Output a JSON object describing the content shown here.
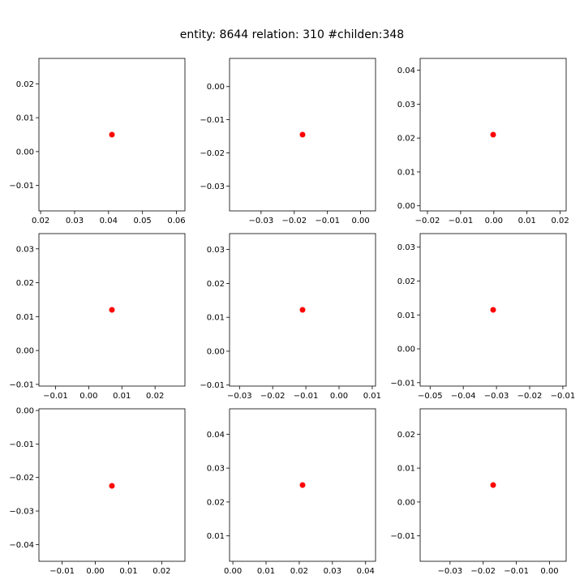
{
  "figure": {
    "title": "entity: 8644  relation: 310  #childen:348",
    "point_color": "#ff0000",
    "axes_color": "#000000",
    "background": "#ffffff"
  },
  "chart_data": [
    {
      "type": "scatter",
      "x": [
        0.041
      ],
      "y": [
        0.005
      ],
      "xlim": [
        0.0195,
        0.0625
      ],
      "ylim": [
        -0.0175,
        0.0275
      ],
      "xticks": [
        0.02,
        0.03,
        0.04,
        0.05,
        0.06
      ],
      "xtick_labels": [
        "0.02",
        "0.03",
        "0.04",
        "0.05",
        "0.06"
      ],
      "yticks": [
        -0.01,
        0.0,
        0.01,
        0.02
      ],
      "ytick_labels": [
        "−0.01",
        "0.00",
        "0.01",
        "0.02"
      ]
    },
    {
      "type": "scatter",
      "x": [
        -0.0175
      ],
      "y": [
        -0.0145
      ],
      "xlim": [
        -0.0395,
        0.0045
      ],
      "ylim": [
        -0.0375,
        0.0085
      ],
      "xticks": [
        -0.03,
        -0.02,
        -0.01,
        0.0
      ],
      "xtick_labels": [
        "−0.03",
        "−0.02",
        "−0.01",
        "0.00"
      ],
      "yticks": [
        -0.03,
        -0.02,
        -0.01,
        0.0
      ],
      "ytick_labels": [
        "−0.03",
        "−0.02",
        "−0.01",
        "0.00"
      ]
    },
    {
      "type": "scatter",
      "x": [
        -0.0002
      ],
      "y": [
        0.021
      ],
      "xlim": [
        -0.0222,
        0.0218
      ],
      "ylim": [
        -0.0015,
        0.0435
      ],
      "xticks": [
        -0.02,
        -0.01,
        0.0,
        0.01,
        0.02
      ],
      "xtick_labels": [
        "−0.02",
        "−0.01",
        "0.00",
        "0.01",
        "0.02"
      ],
      "yticks": [
        0.0,
        0.01,
        0.02,
        0.03,
        0.04
      ],
      "ytick_labels": [
        "0.00",
        "0.01",
        "0.02",
        "0.03",
        "0.04"
      ]
    },
    {
      "type": "scatter",
      "x": [
        0.007
      ],
      "y": [
        0.012
      ],
      "xlim": [
        -0.015,
        0.029
      ],
      "ylim": [
        -0.0105,
        0.0345
      ],
      "xticks": [
        -0.01,
        0.0,
        0.01,
        0.02
      ],
      "xtick_labels": [
        "−0.01",
        "0.00",
        "0.01",
        "0.02"
      ],
      "yticks": [
        -0.01,
        0.0,
        0.01,
        0.02,
        0.03
      ],
      "ytick_labels": [
        "−0.01",
        "0.00",
        "0.01",
        "0.02",
        "0.03"
      ]
    },
    {
      "type": "scatter",
      "x": [
        -0.011
      ],
      "y": [
        0.0122
      ],
      "xlim": [
        -0.033,
        0.011
      ],
      "ylim": [
        -0.0103,
        0.0347
      ],
      "xticks": [
        -0.03,
        -0.02,
        -0.01,
        0.0,
        0.01
      ],
      "xtick_labels": [
        "−0.03",
        "−0.02",
        "−0.01",
        "0.00",
        "0.01"
      ],
      "yticks": [
        -0.01,
        0.0,
        0.01,
        0.02,
        0.03
      ],
      "ytick_labels": [
        "−0.01",
        "0.00",
        "0.01",
        "0.02",
        "0.03"
      ]
    },
    {
      "type": "scatter",
      "x": [
        -0.031
      ],
      "y": [
        0.0115
      ],
      "xlim": [
        -0.053,
        -0.009
      ],
      "ylim": [
        -0.011,
        0.034
      ],
      "xticks": [
        -0.05,
        -0.04,
        -0.03,
        -0.02,
        -0.01
      ],
      "xtick_labels": [
        "−0.05",
        "−0.04",
        "−0.03",
        "−0.02",
        "−0.01"
      ],
      "yticks": [
        -0.01,
        0.0,
        0.01,
        0.02,
        0.03
      ],
      "ytick_labels": [
        "−0.01",
        "0.00",
        "0.01",
        "0.02",
        "0.03"
      ]
    },
    {
      "type": "scatter",
      "x": [
        0.005
      ],
      "y": [
        -0.0225
      ],
      "xlim": [
        -0.017,
        0.027
      ],
      "ylim": [
        -0.045,
        0.0005
      ],
      "xticks": [
        -0.01,
        0.0,
        0.01,
        0.02
      ],
      "xtick_labels": [
        "−0.01",
        "0.00",
        "0.01",
        "0.02"
      ],
      "yticks": [
        -0.04,
        -0.03,
        -0.02,
        -0.01,
        0.0
      ],
      "ytick_labels": [
        "−0.04",
        "−0.03",
        "−0.02",
        "−0.01",
        "0.00"
      ]
    },
    {
      "type": "scatter",
      "x": [
        0.021
      ],
      "y": [
        0.025
      ],
      "xlim": [
        -0.001,
        0.043
      ],
      "ylim": [
        0.0025,
        0.0475
      ],
      "xticks": [
        0.0,
        0.01,
        0.02,
        0.03,
        0.04
      ],
      "xtick_labels": [
        "0.00",
        "0.01",
        "0.02",
        "0.03",
        "0.04"
      ],
      "yticks": [
        0.01,
        0.02,
        0.03,
        0.04
      ],
      "ytick_labels": [
        "0.01",
        "0.02",
        "0.03",
        "0.04"
      ]
    },
    {
      "type": "scatter",
      "x": [
        -0.017
      ],
      "y": [
        0.005
      ],
      "xlim": [
        -0.039,
        0.005
      ],
      "ylim": [
        -0.0175,
        0.0275
      ],
      "xticks": [
        -0.03,
        -0.02,
        -0.01,
        0.0
      ],
      "xtick_labels": [
        "−0.03",
        "−0.02",
        "−0.01",
        "0.00"
      ],
      "yticks": [
        -0.01,
        0.0,
        0.01,
        0.02
      ],
      "ytick_labels": [
        "−0.01",
        "0.00",
        "0.01",
        "0.02"
      ]
    }
  ]
}
